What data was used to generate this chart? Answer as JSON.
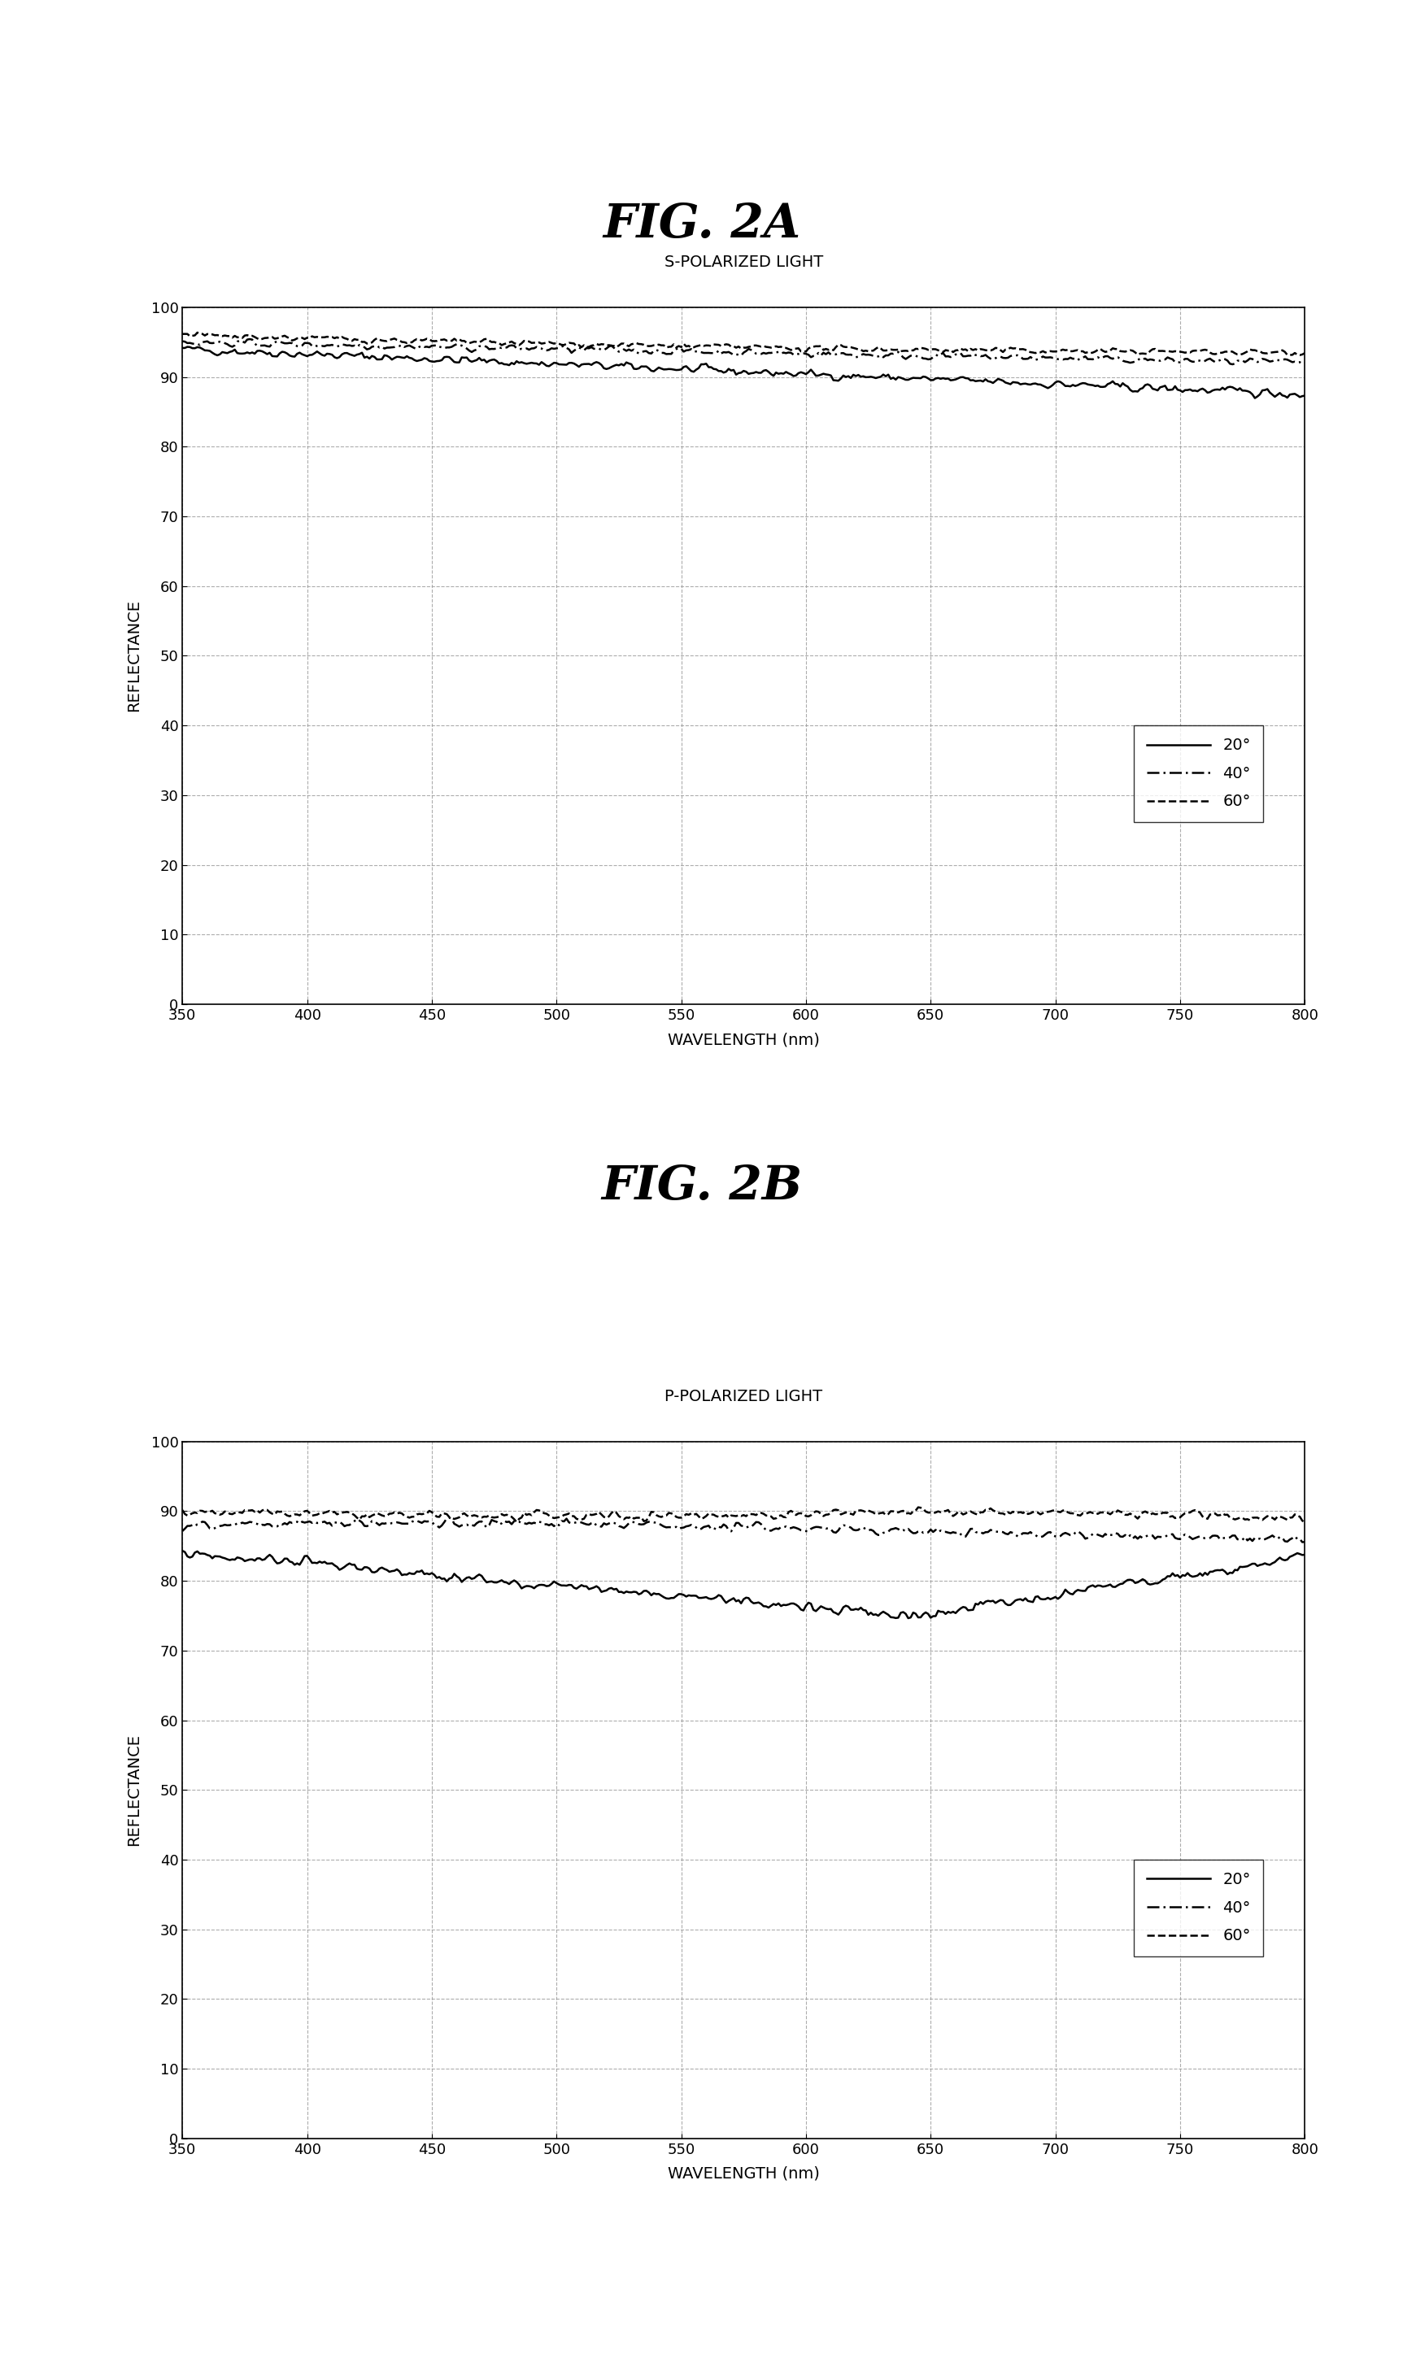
{
  "fig2a_title": "FIG. 2A",
  "fig2b_title": "FIG. 2B",
  "subtitle_a": "S-POLARIZED LIGHT",
  "subtitle_b": "P-POLARIZED LIGHT",
  "xlabel": "WAVELENGTH (nm)",
  "ylabel": "REFLECTANCE",
  "xmin": 350,
  "xmax": 800,
  "ymin": 0,
  "ymax": 100,
  "xticks": [
    350,
    400,
    450,
    500,
    550,
    600,
    650,
    700,
    750,
    800
  ],
  "yticks": [
    0,
    10,
    20,
    30,
    40,
    50,
    60,
    70,
    80,
    90,
    100
  ],
  "legend_labels": [
    "20°",
    "40°",
    "60°"
  ],
  "background_color": "#ffffff",
  "line_color": "#000000",
  "grid_color": "#999999"
}
